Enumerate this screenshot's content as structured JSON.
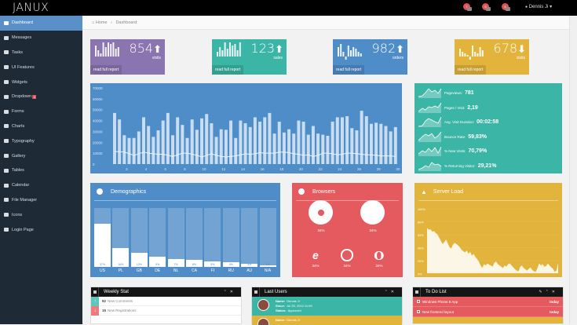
{
  "app": {
    "logo": "JANUX"
  },
  "topbar": {
    "notifications": [
      {
        "icon": "flag-icon",
        "count": "7",
        "x": 590
      },
      {
        "icon": "tasks-icon",
        "count": "5",
        "x": 614
      },
      {
        "icon": "envelope-icon",
        "count": "4",
        "x": 639
      }
    ],
    "user": "Dennis Ji",
    "user_caret": "▾",
    "user_icon": "👤"
  },
  "sidebar": {
    "items": [
      {
        "label": "Dashboard",
        "icon": "dashboard-icon",
        "active": true
      },
      {
        "label": "Messages",
        "icon": "envelope-icon"
      },
      {
        "label": "Tasks",
        "icon": "tasks-icon"
      },
      {
        "label": "UI Features",
        "icon": "eye-icon"
      },
      {
        "label": "Widgets",
        "icon": "dashboard-gauge-icon"
      },
      {
        "label": "Dropdown",
        "icon": "folder-icon",
        "badge": "3"
      },
      {
        "label": "Forms",
        "icon": "edit-icon"
      },
      {
        "label": "Charts",
        "icon": "chart-icon"
      },
      {
        "label": "Typography",
        "icon": "font-icon"
      },
      {
        "label": "Gallery",
        "icon": "picture-icon"
      },
      {
        "label": "Tables",
        "icon": "table-icon"
      },
      {
        "label": "Calendar",
        "icon": "calendar-icon"
      },
      {
        "label": "File Manager",
        "icon": "folder-open-icon"
      },
      {
        "label": "Icons",
        "icon": "star-icon"
      },
      {
        "label": "Login Page",
        "icon": "lock-icon"
      }
    ]
  },
  "breadcrumb": {
    "home": "Home",
    "separator": "›",
    "current": "Dashboard"
  },
  "stats": [
    {
      "value": "854",
      "arrow": "🡅",
      "label": "visits",
      "link": "read full report",
      "color": "#8b75b0"
    },
    {
      "value": "123",
      "arrow": "🡅",
      "label": "sales",
      "link": "read full report",
      "color": "#3bb5a5"
    },
    {
      "value": "982",
      "arrow": "🡅",
      "label": "orders",
      "link": "read full report",
      "color": "#4f8dc9"
    },
    {
      "value": "678",
      "arrow": "🡇",
      "label": "visits",
      "link": "read full report",
      "color": "#e2b43b"
    }
  ],
  "main_chart": {
    "y_ticks": [
      "70000",
      "60000",
      "50000",
      "40000",
      "30000",
      "20000",
      "10000",
      "0"
    ],
    "x_ticks": [
      "2",
      "4",
      "6",
      "8",
      "10",
      "12",
      "14",
      "16",
      "18",
      "20",
      "22",
      "24",
      "26",
      "28",
      "30"
    ]
  },
  "chart_data": {
    "type": "bar",
    "title": "",
    "xlabel": "",
    "ylabel": "",
    "ylim": [
      0,
      70000
    ],
    "x": [
      1,
      1.5,
      2,
      2.5,
      3,
      3.5,
      4,
      4.5,
      5,
      5.5,
      6,
      6.5,
      7,
      7.5,
      8,
      8.5,
      9,
      9.5,
      10,
      10.5,
      11,
      11.5,
      12,
      12.5,
      13,
      13.5,
      14,
      14.5,
      15,
      15.5,
      16,
      16.5,
      17,
      17.5,
      18,
      18.5,
      19,
      19.5,
      20,
      20.5,
      21,
      21.5,
      22,
      22.5,
      23,
      23.5,
      24,
      24.5,
      25,
      25.5,
      26,
      26.5,
      27,
      27.5,
      28,
      28.5,
      29,
      29.5,
      30
    ],
    "series": [
      {
        "name": "bars",
        "type": "bar",
        "values": [
          47000,
          41000,
          26500,
          24000,
          24000,
          30000,
          43000,
          35000,
          25000,
          31000,
          40000,
          47000,
          26500,
          43000,
          36000,
          24000,
          41000,
          31500,
          42000,
          46000,
          37500,
          25000,
          32000,
          31500,
          40000,
          24000,
          40000,
          37500,
          34000,
          43000,
          39000,
          43000,
          47000,
          28000,
          39000,
          29000,
          32000,
          28000,
          40000,
          39000,
          27000,
          35000,
          28000,
          27000,
          26000,
          39000,
          43000,
          43000,
          44000,
          33000,
          31000,
          49000,
          44000,
          37000,
          38000,
          37000,
          35000,
          30000,
          34000
        ]
      },
      {
        "name": "line",
        "type": "line",
        "values": [
          11500,
          11500,
          11000,
          9500,
          8000,
          9500,
          11000,
          10000,
          9500,
          9000,
          9000,
          8000,
          7000,
          8500,
          10000,
          10000,
          9000,
          8000,
          6500,
          8000,
          9500,
          8000,
          7000,
          6500,
          7000,
          7500,
          8500,
          9500,
          9000,
          9500,
          10500,
          10000,
          10000,
          10000,
          11000,
          11000,
          10500,
          9500,
          9000,
          8000,
          8500,
          7000,
          8000,
          10000,
          10000,
          9500,
          8500,
          9000,
          10000,
          10000,
          9500,
          9000,
          8500,
          8500,
          8000,
          7500,
          7500,
          7500,
          7000
        ]
      }
    ]
  },
  "metrics": [
    {
      "label": "Pageviews:",
      "value": "781"
    },
    {
      "label": "Pages / Visit:",
      "value": "2,19"
    },
    {
      "label": "Avg. Visit Duration:",
      "value": "00:02:58"
    },
    {
      "label": "Bounce Rate:",
      "value": "59,83%"
    },
    {
      "label": "% New Visits:",
      "value": "70,79%"
    },
    {
      "label": "% Returning Visitor:",
      "value": "29,21%"
    }
  ],
  "demographics": {
    "title": "Demographics",
    "bars": [
      {
        "country": "US",
        "pct": "37%",
        "v": 37
      },
      {
        "country": "PL",
        "pct": "16%",
        "v": 16
      },
      {
        "country": "GB",
        "pct": "12%",
        "v": 12
      },
      {
        "country": "DE",
        "pct": "9%",
        "v": 9
      },
      {
        "country": "NL",
        "pct": "7%",
        "v": 7
      },
      {
        "country": "CA",
        "pct": "6%",
        "v": 6
      },
      {
        "country": "FI",
        "pct": "5%",
        "v": 5
      },
      {
        "country": "RU",
        "pct": "4%",
        "v": 4
      },
      {
        "country": "AU",
        "pct": "3%",
        "v": 3
      },
      {
        "country": "N/A",
        "pct": "1%",
        "v": 1
      }
    ]
  },
  "browsers": {
    "title": "Browsers",
    "items": [
      {
        "name": "chrome-icon",
        "pct": "34%"
      },
      {
        "name": "firefox-icon",
        "pct": "34%"
      },
      {
        "name": "ie-icon",
        "pct": "34%"
      },
      {
        "name": "safari-icon",
        "pct": "34%"
      },
      {
        "name": "opera-icon",
        "pct": "34%"
      }
    ]
  },
  "server_load": {
    "title": "Server Load",
    "y_ticks": [
      "100%",
      "80%",
      "60%",
      "40%",
      "20%",
      "0%"
    ]
  },
  "weekly_stat": {
    "title": "Weekly Stat",
    "rows": [
      {
        "value": "92",
        "label": "New Comments",
        "arrow": "↑",
        "color": "#5ec6bd"
      },
      {
        "value": "15",
        "label": "New Registrations",
        "arrow": "↓",
        "color": "#ee7a7d"
      }
    ]
  },
  "last_users": {
    "title": "Last Users",
    "users": [
      {
        "name_label": "Name:",
        "name": "Dennis Ji",
        "since_label": "Since:",
        "since": "Jul 25, 2012 11:09",
        "status_label": "Status:",
        "status": "Approved",
        "color": "#3bb5a5"
      },
      {
        "name_label": "Name:",
        "name": "Dennis Ji",
        "color": "#e2b43b"
      }
    ]
  },
  "todo": {
    "title": "To Do List",
    "items": [
      {
        "text": "Windows Phone 8 App",
        "due": "today",
        "color": "#e55a5e"
      },
      {
        "text": "New frontend layout",
        "due": "today",
        "color": "#e55a5e"
      }
    ]
  }
}
